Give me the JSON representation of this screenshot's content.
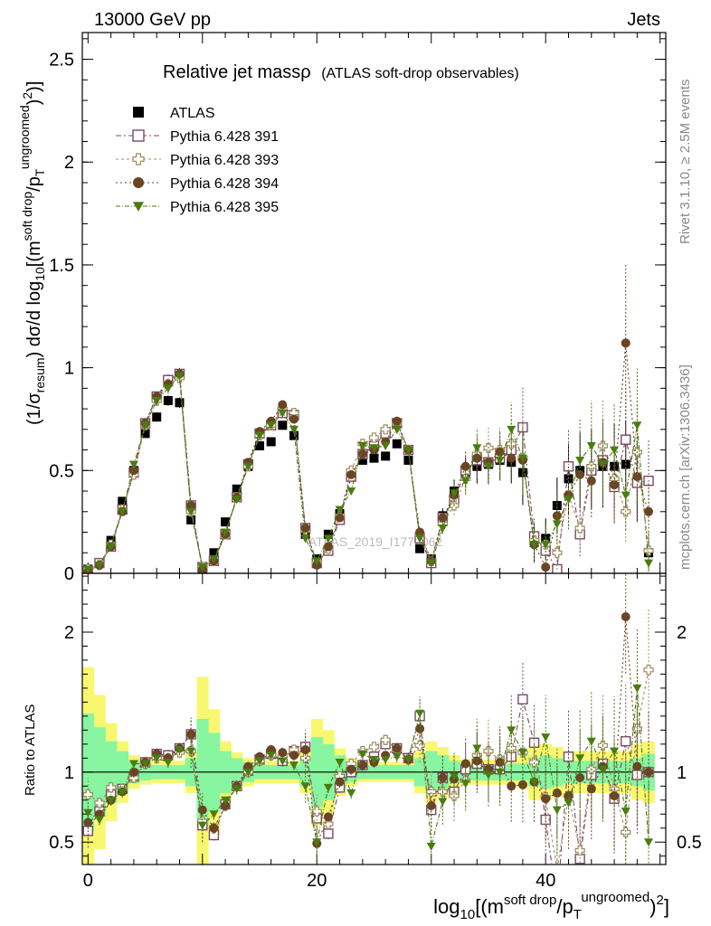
{
  "header": {
    "left": "13000 GeV pp",
    "right": "Jets"
  },
  "side_labels": {
    "rivet": "Rivet 3.1.10, ≥ 2.5M events",
    "mcplots": "mcplots.cern.ch [arXiv:1306.3436]"
  },
  "watermark": "ATLAS_2019_I1772062",
  "colors": {
    "atlas": "#000000",
    "p391": "#7a4a63",
    "p393": "#9c8c60",
    "p394": "#6a4424",
    "p395": "#4a7c10",
    "band_inner": "#88f5a0",
    "band_outer": "#f8f870"
  },
  "chart_data": [
    {
      "type": "scatter",
      "panel": "main",
      "title": "Relative jet massρ",
      "title_note": "(ATLAS soft-drop observables)",
      "ylabel_main": "(1/σ",
      "ylabel_sub1": "resum",
      "ylabel_mid": ") dσ/d log",
      "ylabel_sub2": "10",
      "ylabel_tail": "[(m",
      "ylabel_sup1": "soft drop",
      "ylabel_mid2": "/p",
      "ylabel_sub3": "T",
      "ylabel_sup2": "ungroomed",
      "ylabel_end": ")",
      "ylabel_sup3": "2",
      "ylabel_close": ")]",
      "xlim": [
        -0.5,
        50.5
      ],
      "ylim": [
        0,
        2.63
      ],
      "yticks": [
        "0",
        "0.5",
        "1",
        "1.5",
        "2",
        "2.5"
      ],
      "legend_position": "top-left",
      "x": [
        0,
        1,
        2,
        3,
        4,
        5,
        6,
        7,
        8,
        9,
        10,
        11,
        12,
        13,
        14,
        15,
        16,
        17,
        18,
        19,
        20,
        21,
        22,
        23,
        24,
        25,
        26,
        27,
        28,
        29,
        30,
        31,
        32,
        33,
        34,
        35,
        36,
        37,
        38,
        39,
        40,
        41,
        42,
        43,
        44,
        45,
        46,
        47,
        48,
        49
      ],
      "series": [
        {
          "name": "ATLAS",
          "marker": "square-filled",
          "values": [
            0.02,
            0.05,
            0.16,
            0.35,
            0.5,
            0.68,
            0.76,
            0.84,
            0.83,
            0.26,
            0.02,
            0.1,
            0.25,
            0.41,
            0.52,
            0.62,
            0.64,
            0.72,
            0.67,
            0.19,
            0.07,
            0.19,
            0.29,
            0.47,
            0.55,
            0.56,
            0.57,
            0.63,
            0.55,
            0.12,
            0.07,
            0.28,
            0.4,
            0.49,
            0.52,
            0.53,
            0.55,
            0.54,
            0.49,
            0.15,
            0.17,
            0.33,
            0.46,
            0.5,
            0.51,
            0.52,
            0.52,
            0.53,
            0.45,
            0.1
          ]
        },
        {
          "name": "Pythia 6.428 391",
          "marker": "square-open",
          "values": [
            0.01,
            0.05,
            0.13,
            0.31,
            0.49,
            0.73,
            0.86,
            0.94,
            0.97,
            0.33,
            0.03,
            0.06,
            0.19,
            0.37,
            0.53,
            0.68,
            0.72,
            0.78,
            0.77,
            0.22,
            0.05,
            0.11,
            0.26,
            0.47,
            0.58,
            0.62,
            0.68,
            0.73,
            0.6,
            0.17,
            0.05,
            0.27,
            0.36,
            0.5,
            0.55,
            0.54,
            0.56,
            0.6,
            0.71,
            0.18,
            0.11,
            0.02,
            0.52,
            0.19,
            0.5,
            0.55,
            0.42,
            0.65,
            0.44,
            0.45
          ]
        },
        {
          "name": "Pythia 6.428 393",
          "marker": "cross-open",
          "values": [
            0.02,
            0.04,
            0.14,
            0.31,
            0.48,
            0.72,
            0.84,
            0.92,
            0.95,
            0.3,
            0.03,
            0.06,
            0.19,
            0.37,
            0.52,
            0.67,
            0.72,
            0.8,
            0.78,
            0.21,
            0.05,
            0.12,
            0.28,
            0.5,
            0.63,
            0.66,
            0.7,
            0.73,
            0.6,
            0.19,
            0.06,
            0.24,
            0.33,
            0.46,
            0.58,
            0.61,
            0.6,
            0.63,
            0.56,
            0.16,
            0.14,
            0.1,
            0.38,
            0.22,
            0.52,
            0.62,
            0.46,
            0.3,
            0.59,
            0.11
          ]
        },
        {
          "name": "Pythia 6.428 394",
          "marker": "circle-filled",
          "values": [
            0.01,
            0.04,
            0.13,
            0.3,
            0.5,
            0.73,
            0.86,
            0.92,
            0.97,
            0.33,
            0.02,
            0.06,
            0.19,
            0.37,
            0.54,
            0.69,
            0.74,
            0.82,
            0.75,
            0.22,
            0.04,
            0.13,
            0.27,
            0.48,
            0.58,
            0.6,
            0.64,
            0.74,
            0.6,
            0.2,
            0.06,
            0.27,
            0.38,
            0.52,
            0.56,
            0.54,
            0.59,
            0.56,
            0.55,
            0.14,
            0.03,
            0.28,
            0.38,
            0.48,
            0.45,
            0.54,
            0.43,
            1.12,
            0.47,
            0.3
          ]
        },
        {
          "name": "Pythia 6.428 395",
          "marker": "triangle-down-filled",
          "values": [
            0.02,
            0.04,
            0.13,
            0.3,
            0.53,
            0.72,
            0.84,
            0.9,
            0.96,
            0.3,
            0.03,
            0.07,
            0.2,
            0.36,
            0.52,
            0.67,
            0.72,
            0.78,
            0.7,
            0.17,
            0.06,
            0.17,
            0.31,
            0.4,
            0.62,
            0.61,
            0.62,
            0.7,
            0.6,
            0.17,
            0.05,
            0.22,
            0.39,
            0.45,
            0.61,
            0.52,
            0.55,
            0.7,
            0.56,
            0.14,
            0.14,
            0.24,
            0.36,
            0.55,
            0.62,
            0.53,
            0.6,
            0.38,
            0.72,
            0.05
          ]
        }
      ]
    },
    {
      "type": "scatter",
      "panel": "ratio",
      "ylabel": "Ratio to ATLAS",
      "xlabel_main": "log",
      "xlabel_sub1": "10",
      "xlabel_tail": "[(m",
      "xlabel_sup1": "soft drop",
      "xlabel_mid": "/p",
      "xlabel_sub2": "T",
      "xlabel_sup2": "ungroomed",
      "xlabel_end": ")",
      "xlabel_sup3": "2",
      "xlabel_close": "]",
      "xlim": [
        -0.5,
        50.5
      ],
      "ylim": [
        0.34,
        2.42
      ],
      "xticks": [
        "0",
        "20",
        "40"
      ],
      "yticks": [
        "0.5",
        "1",
        "2"
      ],
      "ratio_series": {
        "Pythia 6.428 391": [
          0.58,
          0.72,
          0.84,
          0.88,
          0.97,
          1.07,
          1.13,
          1.12,
          1.17,
          1.27,
          0.62,
          0.55,
          0.77,
          0.9,
          1.01,
          1.09,
          1.13,
          1.08,
          1.15,
          1.18,
          0.67,
          0.56,
          0.89,
          1.0,
          1.05,
          1.11,
          1.2,
          1.17,
          1.1,
          1.4,
          0.73,
          0.96,
          0.86,
          1.02,
          1.06,
          1.02,
          1.02,
          1.11,
          1.52,
          1.21,
          0.66,
          0.06,
          1.11,
          0.38,
          0.98,
          1.06,
          0.81,
          1.22,
          0.98,
          1.0
        ],
        "Pythia 6.428 393": [
          0.84,
          0.78,
          0.89,
          0.88,
          0.96,
          1.06,
          1.1,
          1.1,
          1.14,
          1.15,
          0.65,
          0.6,
          0.76,
          0.9,
          1.0,
          1.08,
          1.12,
          1.11,
          1.16,
          1.1,
          0.72,
          0.63,
          0.97,
          1.06,
          1.15,
          1.18,
          1.23,
          1.16,
          1.09,
          1.19,
          0.86,
          0.86,
          0.83,
          0.94,
          1.12,
          1.15,
          1.09,
          1.17,
          1.14,
          1.07,
          0.82,
          0.3,
          0.83,
          0.44,
          1.02,
          1.19,
          0.88,
          0.57,
          1.31,
          1.73
        ],
        "Pythia 6.428 394": [
          0.64,
          0.7,
          0.8,
          0.86,
          1.0,
          1.07,
          1.13,
          1.1,
          1.17,
          1.27,
          0.73,
          0.6,
          0.76,
          0.9,
          1.04,
          1.11,
          1.16,
          1.14,
          1.12,
          1.16,
          0.49,
          0.68,
          0.93,
          1.02,
          1.05,
          1.07,
          1.12,
          1.17,
          1.09,
          1.31,
          0.76,
          0.96,
          0.95,
          1.06,
          1.08,
          1.02,
          1.07,
          0.9,
          0.91,
          0.93,
          0.81,
          0.85,
          0.83,
          0.96,
          0.88,
          1.04,
          0.83,
          2.11,
          1.04,
          1.0
        ],
        "Pythia 6.428 395": [
          0.71,
          0.66,
          0.8,
          0.86,
          1.06,
          1.06,
          1.1,
          1.07,
          1.16,
          1.15,
          0.62,
          0.7,
          0.8,
          0.88,
          1.0,
          1.08,
          1.12,
          1.08,
          1.05,
          0.9,
          0.5,
          0.89,
          1.07,
          0.85,
          1.13,
          1.09,
          1.09,
          1.11,
          1.09,
          1.42,
          0.47,
          0.79,
          0.97,
          0.92,
          1.17,
          0.98,
          1.0,
          1.3,
          1.14,
          0.93,
          1.25,
          0.73,
          0.78,
          1.1,
          1.22,
          1.02,
          1.15,
          0.72,
          1.6,
          0.5
        ]
      },
      "band_inner_halfwidth": [
        0.42,
        0.32,
        0.22,
        0.15,
        0.08,
        0.06,
        0.05,
        0.05,
        0.05,
        0.1,
        0.38,
        0.28,
        0.15,
        0.1,
        0.07,
        0.05,
        0.05,
        0.05,
        0.05,
        0.1,
        0.25,
        0.2,
        0.12,
        0.07,
        0.05,
        0.05,
        0.05,
        0.05,
        0.05,
        0.1,
        0.15,
        0.12,
        0.08,
        0.06,
        0.06,
        0.06,
        0.06,
        0.06,
        0.06,
        0.1,
        0.12,
        0.1,
        0.08,
        0.08,
        0.08,
        0.08,
        0.08,
        0.08,
        0.1,
        0.13
      ],
      "band_outer_halfwidth": [
        0.75,
        0.55,
        0.35,
        0.22,
        0.12,
        0.09,
        0.08,
        0.08,
        0.08,
        0.15,
        0.68,
        0.45,
        0.22,
        0.14,
        0.1,
        0.08,
        0.08,
        0.08,
        0.08,
        0.15,
        0.38,
        0.3,
        0.17,
        0.1,
        0.07,
        0.07,
        0.07,
        0.07,
        0.07,
        0.15,
        0.22,
        0.18,
        0.12,
        0.09,
        0.09,
        0.09,
        0.09,
        0.09,
        0.12,
        0.2,
        0.2,
        0.18,
        0.15,
        0.15,
        0.15,
        0.15,
        0.15,
        0.15,
        0.2,
        0.22
      ]
    }
  ]
}
